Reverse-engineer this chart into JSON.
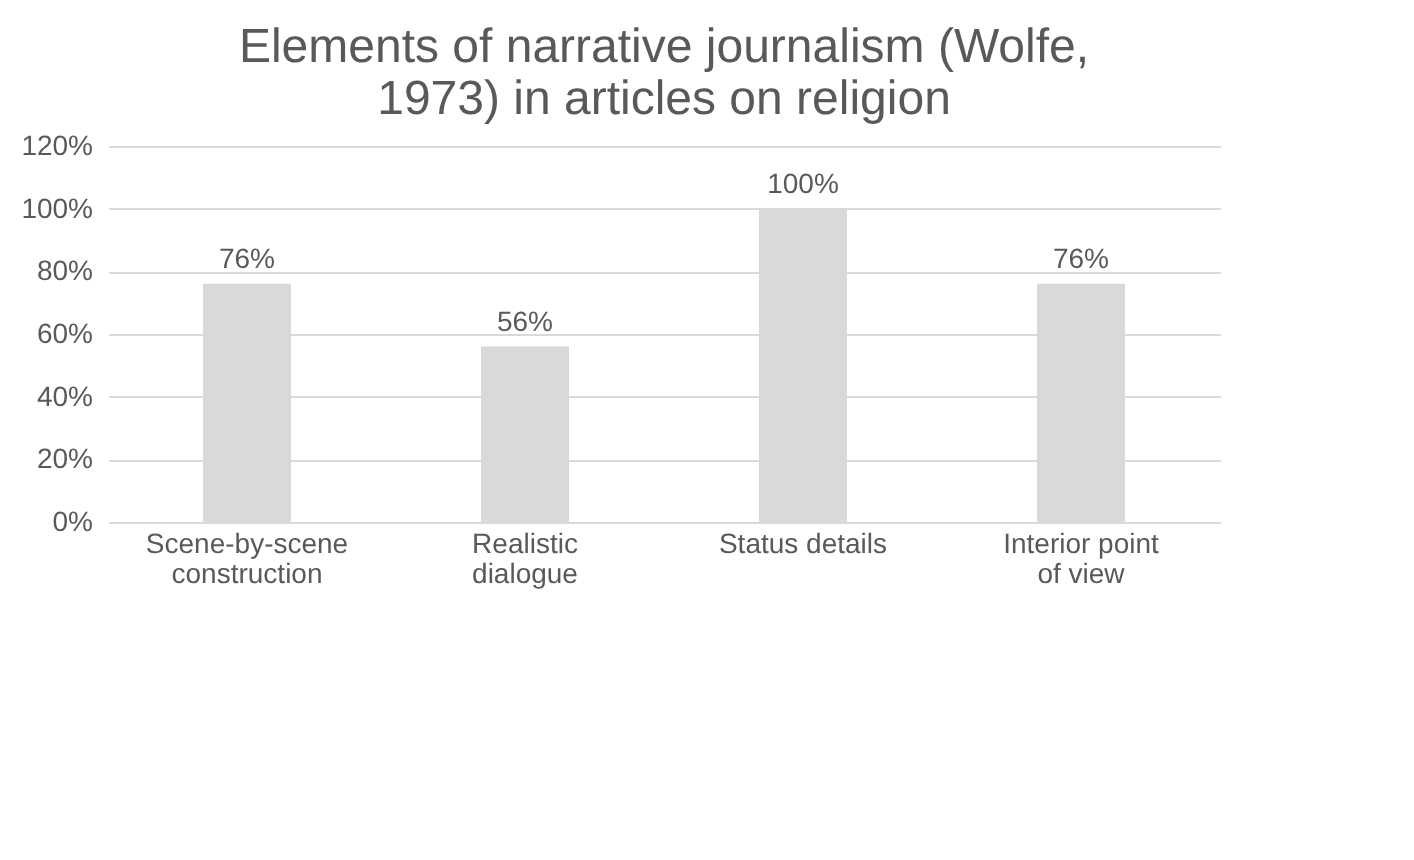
{
  "chart_data": {
    "type": "bar",
    "title": "Elements of narrative journalism (Wolfe, 1973) in articles on religion",
    "categories": [
      "Scene-by-scene construction",
      "Realistic dialogue",
      "Status details",
      "Interior point of view"
    ],
    "values": [
      76,
      56,
      100,
      76
    ],
    "color": "#d9d9d9",
    "value_labels": [
      "76%",
      "56%",
      "100%",
      "76%"
    ],
    "ylim": [
      0,
      120
    ],
    "yticks": [
      {
        "value": 0,
        "label": "0%"
      },
      {
        "value": 20,
        "label": "20%"
      },
      {
        "value": 40,
        "label": "40%"
      },
      {
        "value": 60,
        "label": "60%"
      },
      {
        "value": 80,
        "label": "80%"
      },
      {
        "value": 100,
        "label": "100%"
      },
      {
        "value": 120,
        "label": "120%"
      }
    ],
    "grid": "y"
  }
}
